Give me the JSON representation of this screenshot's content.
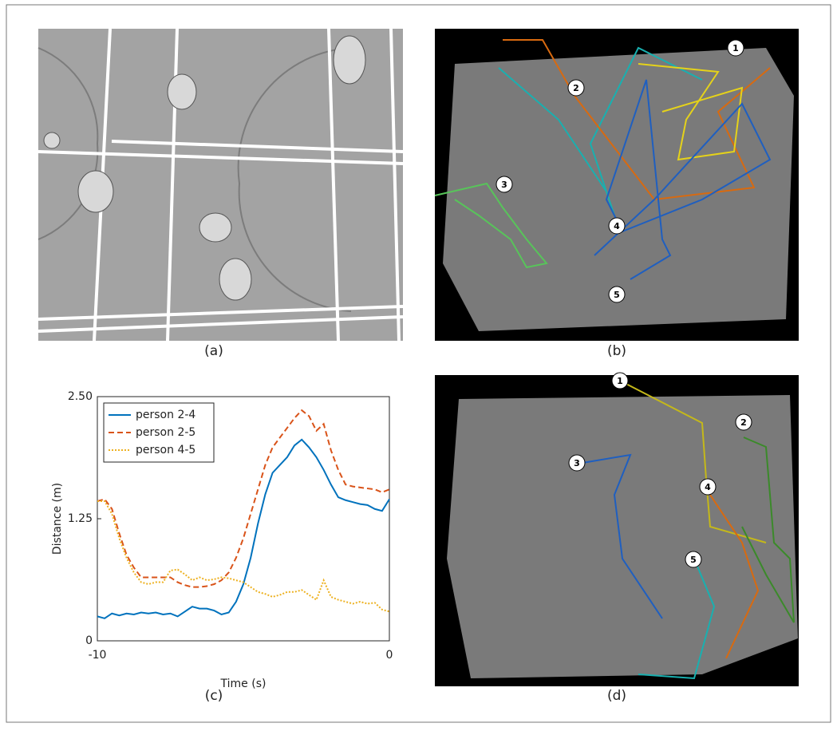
{
  "captions": {
    "a": "(a)",
    "b": "(b)",
    "c": "(c)",
    "d": "(d)"
  },
  "panel_b": {
    "markers": [
      "1",
      "2",
      "3",
      "4",
      "5"
    ]
  },
  "panel_d": {
    "markers": [
      "1",
      "2",
      "3",
      "4",
      "5"
    ]
  },
  "chart_data": {
    "type": "line",
    "xlabel": "Time (s)",
    "ylabel": "Distance (m)",
    "x": [
      -10,
      -9.75,
      -9.5,
      -9.25,
      -9,
      -8.75,
      -8.5,
      -8.25,
      -8,
      -7.75,
      -7.5,
      -7.25,
      -7,
      -6.75,
      -6.5,
      -6.25,
      -6,
      -5.75,
      -5.5,
      -5.25,
      -5,
      -4.75,
      -4.5,
      -4.25,
      -4,
      -3.75,
      -3.5,
      -3.25,
      -3,
      -2.75,
      -2.5,
      -2.25,
      -2,
      -1.75,
      -1.5,
      -1.25,
      -1,
      -0.75,
      -0.5,
      -0.25,
      0
    ],
    "series": [
      {
        "name": "person 2-4",
        "color": "#0072bd",
        "style": "solid",
        "values": [
          0.25,
          0.23,
          0.28,
          0.26,
          0.28,
          0.27,
          0.29,
          0.28,
          0.29,
          0.27,
          0.28,
          0.25,
          0.3,
          0.35,
          0.33,
          0.33,
          0.31,
          0.27,
          0.29,
          0.4,
          0.58,
          0.85,
          1.2,
          1.5,
          1.72,
          1.8,
          1.88,
          2.0,
          2.06,
          1.98,
          1.88,
          1.75,
          1.6,
          1.47,
          1.44,
          1.42,
          1.4,
          1.39,
          1.35,
          1.33,
          1.45
        ]
      },
      {
        "name": "person 2-5",
        "color": "#d95319",
        "style": "dashed",
        "values": [
          1.43,
          1.45,
          1.35,
          1.1,
          0.88,
          0.75,
          0.65,
          0.65,
          0.65,
          0.65,
          0.65,
          0.6,
          0.57,
          0.55,
          0.55,
          0.56,
          0.58,
          0.62,
          0.7,
          0.85,
          1.05,
          1.3,
          1.55,
          1.8,
          1.98,
          2.08,
          2.18,
          2.28,
          2.36,
          2.3,
          2.15,
          2.22,
          1.95,
          1.75,
          1.6,
          1.58,
          1.57,
          1.56,
          1.55,
          1.52,
          1.55
        ]
      },
      {
        "name": "person 4-5",
        "color": "#edb120",
        "style": "dotted",
        "values": [
          1.43,
          1.43,
          1.3,
          1.05,
          0.85,
          0.7,
          0.6,
          0.58,
          0.6,
          0.6,
          0.72,
          0.73,
          0.68,
          0.62,
          0.65,
          0.62,
          0.63,
          0.65,
          0.64,
          0.62,
          0.6,
          0.55,
          0.5,
          0.48,
          0.45,
          0.47,
          0.5,
          0.5,
          0.52,
          0.47,
          0.42,
          0.62,
          0.45,
          0.42,
          0.4,
          0.38,
          0.4,
          0.38,
          0.39,
          0.32,
          0.3
        ]
      }
    ],
    "xlim": [
      -10,
      0
    ],
    "xticks": [
      -10,
      0
    ],
    "ylim": [
      0,
      2.5
    ],
    "yticks": [
      0,
      1.25,
      {
        "value": 2.5,
        "label": "2.50"
      }
    ],
    "legend": "upper-left"
  }
}
